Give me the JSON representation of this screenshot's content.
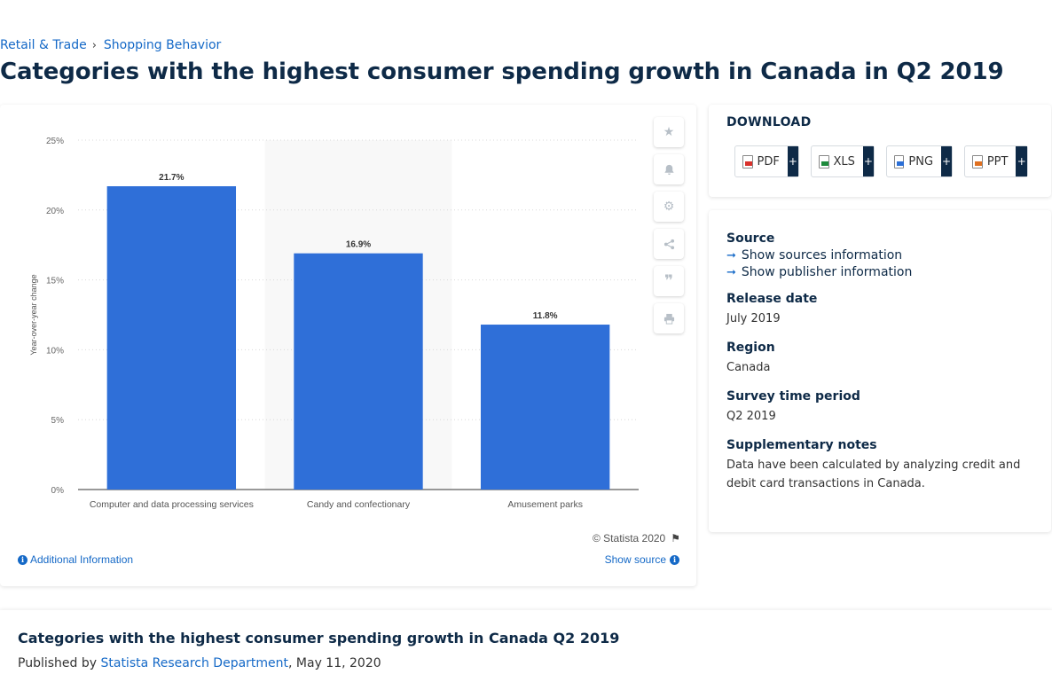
{
  "breadcrumb": {
    "items": [
      "Retail & Trade",
      "Shopping Behavior"
    ],
    "separator": "›"
  },
  "title": "Categories with the highest consumer spending growth in Canada in Q2 2019",
  "chart_data": {
    "type": "bar",
    "categories": [
      "Computer and data processing services",
      "Candy and confectionary",
      "Amusement parks"
    ],
    "values": [
      21.7,
      16.9,
      11.8
    ],
    "data_labels": [
      "21.7%",
      "16.9%",
      "11.8%"
    ],
    "xlabel": "",
    "ylabel": "Year-over-year change",
    "ylim": [
      0,
      25
    ],
    "yticks": [
      "0%",
      "5%",
      "10%",
      "15%",
      "20%",
      "25%"
    ],
    "ytick_values": [
      0,
      5,
      10,
      15,
      20,
      25
    ],
    "bar_color": "#2f6fd8",
    "grid": true,
    "highlighted_category": 1
  },
  "chart_footer": {
    "copyright": "© Statista 2020",
    "additional_info": "Additional Information",
    "show_source": "Show source"
  },
  "download": {
    "title": "DOWNLOAD",
    "buttons": [
      {
        "label": "PDF",
        "icon": "pdf-file-icon"
      },
      {
        "label": "XLS",
        "icon": "xls-file-icon"
      },
      {
        "label": "PNG",
        "icon": "png-file-icon"
      },
      {
        "label": "PPT",
        "icon": "ppt-file-icon"
      }
    ],
    "plus": "+"
  },
  "info": {
    "source_label": "Source",
    "show_sources": "Show sources information",
    "show_publisher": "Show publisher information",
    "release_label": "Release date",
    "release_value": "July 2019",
    "region_label": "Region",
    "region_value": "Canada",
    "survey_label": "Survey time period",
    "survey_value": "Q2 2019",
    "notes_label": "Supplementary notes",
    "notes_value": "Data have been calculated by analyzing credit and debit card transactions in Canada."
  },
  "bottom": {
    "title": "Categories with the highest consumer spending growth in Canada Q2 2019",
    "published_by": "Published by",
    "author": "Statista Research Department",
    "date": ", May 11, 2020"
  }
}
